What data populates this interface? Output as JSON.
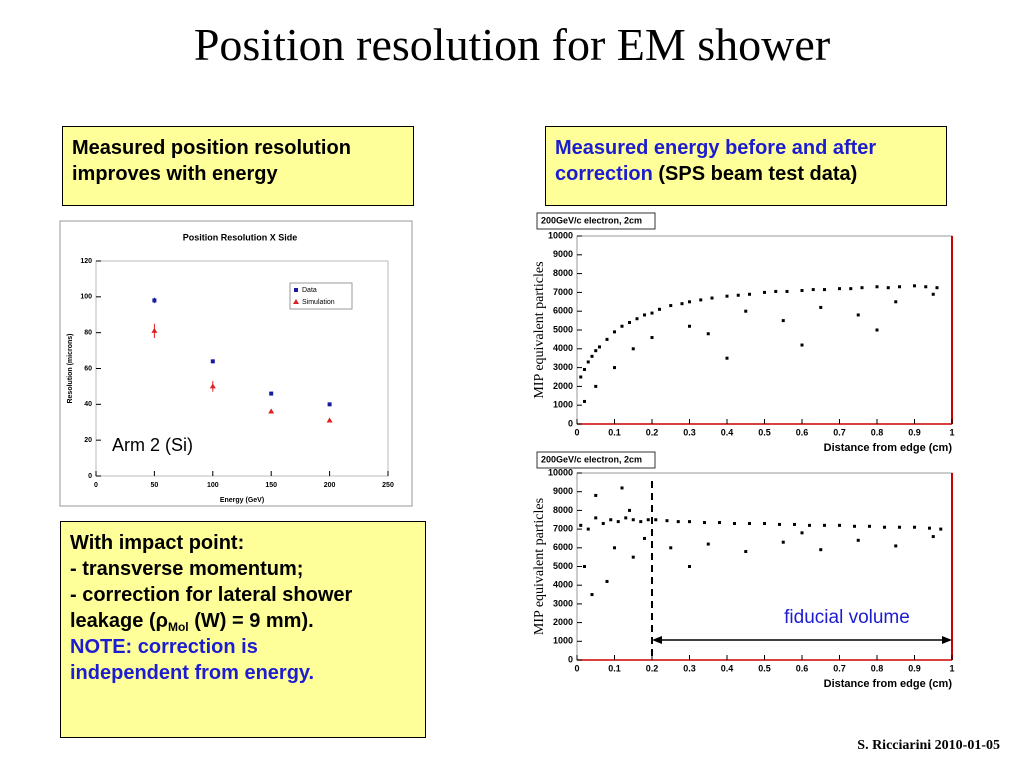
{
  "title": "Position resolution for EM shower",
  "box_left": {
    "lines": [
      "Measured position resolution",
      "improves with energy"
    ]
  },
  "box_right": {
    "blue": "Measured energy before and after",
    "blue2": "correction",
    "black": "(SPS beam test data)"
  },
  "box_bottom": {
    "lines": [
      "With impact point:",
      "- transverse momentum;",
      "- correction for lateral shower"
    ],
    "leak_pre": "leakage (ρ",
    "leak_sub": "Mol",
    "leak_post": "(W) = 9 mm).",
    "note": [
      "NOTE: correction is",
      "independent from energy."
    ]
  },
  "footer": "S. Ricciarini 2010-01-05",
  "chart_data": [
    {
      "type": "scatter",
      "title": "Position Resolution X Side",
      "xlabel": "Energy (GeV)",
      "ylabel": "Resolution (microns)",
      "annotation": "Arm 2 (Si)",
      "xlim": [
        0,
        250
      ],
      "xticks": [
        0,
        50,
        100,
        150,
        200,
        250
      ],
      "ylim": [
        0,
        120
      ],
      "yticks": [
        0,
        20,
        40,
        60,
        80,
        100,
        120
      ],
      "legend": "upper right",
      "series": [
        {
          "name": "Data",
          "color": "#1a1aa0",
          "marker": "square",
          "x": [
            50,
            100,
            150,
            200
          ],
          "values": [
            98,
            64,
            46,
            40
          ],
          "errors": [
            1.5,
            1,
            0.5,
            0.5
          ]
        },
        {
          "name": "Simulation",
          "color": "#e02020",
          "marker": "triangle",
          "x": [
            50,
            100,
            150,
            200
          ],
          "values": [
            81,
            50,
            36,
            31
          ],
          "errors": [
            4,
            3,
            1,
            1
          ]
        }
      ]
    },
    {
      "type": "scatter",
      "title": "200GeV/c electron, 2cm",
      "xlabel": "Distance from edge (cm)",
      "ylabel": "MIP equivalent particles",
      "xlim": [
        0,
        1
      ],
      "xticks": [
        0,
        0.1,
        0.2,
        0.3,
        0.4,
        0.5,
        0.6,
        0.7,
        0.8,
        0.9,
        1
      ],
      "ylim": [
        0,
        10000
      ],
      "yticks": [
        0,
        1000,
        2000,
        3000,
        4000,
        5000,
        6000,
        7000,
        8000,
        9000,
        10000
      ],
      "color": "#000000",
      "x": [
        0.01,
        0.02,
        0.03,
        0.04,
        0.05,
        0.06,
        0.08,
        0.1,
        0.12,
        0.14,
        0.16,
        0.18,
        0.2,
        0.22,
        0.25,
        0.28,
        0.3,
        0.33,
        0.36,
        0.4,
        0.43,
        0.46,
        0.5,
        0.53,
        0.56,
        0.6,
        0.63,
        0.66,
        0.7,
        0.73,
        0.76,
        0.8,
        0.83,
        0.86,
        0.9,
        0.93,
        0.96,
        0.05,
        0.1,
        0.15,
        0.2,
        0.3,
        0.35,
        0.45,
        0.55,
        0.65,
        0.75,
        0.85,
        0.95,
        0.02,
        0.4,
        0.6,
        0.8
      ],
      "values": [
        2500,
        2900,
        3300,
        3600,
        3900,
        4100,
        4500,
        4900,
        5200,
        5400,
        5600,
        5800,
        5900,
        6100,
        6300,
        6400,
        6500,
        6600,
        6700,
        6800,
        6850,
        6900,
        7000,
        7050,
        7050,
        7100,
        7150,
        7150,
        7200,
        7200,
        7250,
        7300,
        7250,
        7300,
        7350,
        7300,
        7250,
        2000,
        3000,
        4000,
        4600,
        5200,
        4800,
        6000,
        5500,
        6200,
        5800,
        6500,
        6900,
        1200,
        3500,
        4200,
        5000
      ]
    },
    {
      "type": "scatter",
      "title": "200GeV/c electron, 2cm",
      "xlabel": "Distance from edge (cm)",
      "ylabel": "MIP equivalent particles",
      "annotation": "fiducial volume",
      "fiducial_range": [
        0.2,
        1
      ],
      "xlim": [
        0,
        1
      ],
      "xticks": [
        0,
        0.1,
        0.2,
        0.3,
        0.4,
        0.5,
        0.6,
        0.7,
        0.8,
        0.9,
        1
      ],
      "ylim": [
        0,
        10000
      ],
      "yticks": [
        0,
        1000,
        2000,
        3000,
        4000,
        5000,
        6000,
        7000,
        8000,
        9000,
        10000
      ],
      "color": "#000000",
      "x": [
        0.01,
        0.03,
        0.05,
        0.07,
        0.09,
        0.11,
        0.13,
        0.15,
        0.17,
        0.19,
        0.21,
        0.24,
        0.27,
        0.3,
        0.34,
        0.38,
        0.42,
        0.46,
        0.5,
        0.54,
        0.58,
        0.62,
        0.66,
        0.7,
        0.74,
        0.78,
        0.82,
        0.86,
        0.9,
        0.94,
        0.97,
        0.02,
        0.05,
        0.08,
        0.1,
        0.12,
        0.15,
        0.18,
        0.04,
        0.14,
        0.25,
        0.35,
        0.45,
        0.55,
        0.65,
        0.75,
        0.85,
        0.95,
        0.3,
        0.6
      ],
      "values": [
        7200,
        7000,
        7600,
        7300,
        7500,
        7400,
        7600,
        7500,
        7400,
        7500,
        7500,
        7450,
        7400,
        7400,
        7350,
        7350,
        7300,
        7300,
        7300,
        7250,
        7250,
        7200,
        7200,
        7200,
        7150,
        7150,
        7100,
        7100,
        7100,
        7050,
        7000,
        5000,
        8800,
        4200,
        6000,
        9200,
        5500,
        6500,
        3500,
        8000,
        6000,
        6200,
        5800,
        6300,
        5900,
        6400,
        6100,
        6600,
        5000,
        6800
      ]
    }
  ]
}
